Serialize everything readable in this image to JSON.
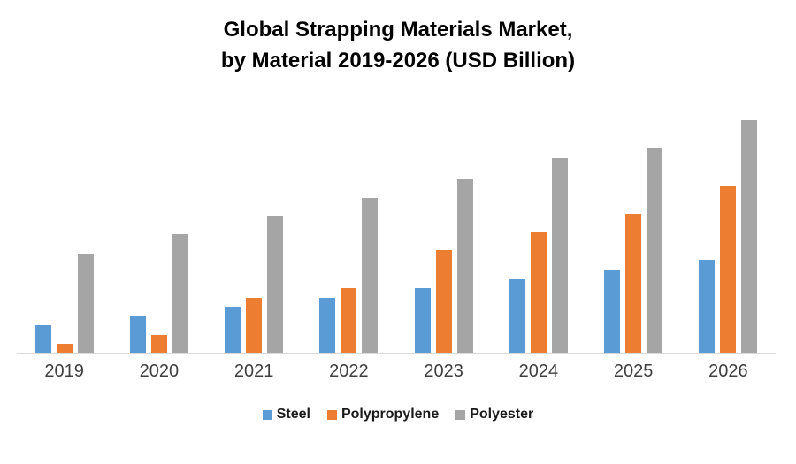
{
  "title": {
    "line1": "Global Strapping Materials Market,",
    "line2": "by Material 2019-2026 (USD Billion)"
  },
  "chart_data": {
    "type": "bar",
    "title": "Global Strapping Materials Market, by Material 2019-2026 (USD Billion)",
    "unit": "USD Billion",
    "categories": [
      "2019",
      "2020",
      "2021",
      "2022",
      "2023",
      "2024",
      "2025",
      "2026"
    ],
    "series": [
      {
        "name": "Steel",
        "color": "#5B9BD5",
        "values": [
          3.1,
          4.1,
          5.2,
          6.2,
          7.3,
          8.3,
          9.4,
          10.5
        ]
      },
      {
        "name": "Polypropylene",
        "color": "#ED7D31",
        "values": [
          1.0,
          2.0,
          6.2,
          7.3,
          11.6,
          13.6,
          15.7,
          18.9
        ]
      },
      {
        "name": "Polyester",
        "color": "#A5A5A5",
        "values": [
          11.2,
          13.4,
          15.5,
          17.5,
          19.6,
          22.0,
          23.1,
          26.3
        ]
      }
    ],
    "xlabel": "",
    "ylabel": "",
    "ylim": [
      0,
      30
    ],
    "y_axis_visible": false,
    "grid": false,
    "legend_position": "bottom",
    "baseline_color": "#d9d9d9",
    "axis_label_color": "#3f3f3f"
  }
}
